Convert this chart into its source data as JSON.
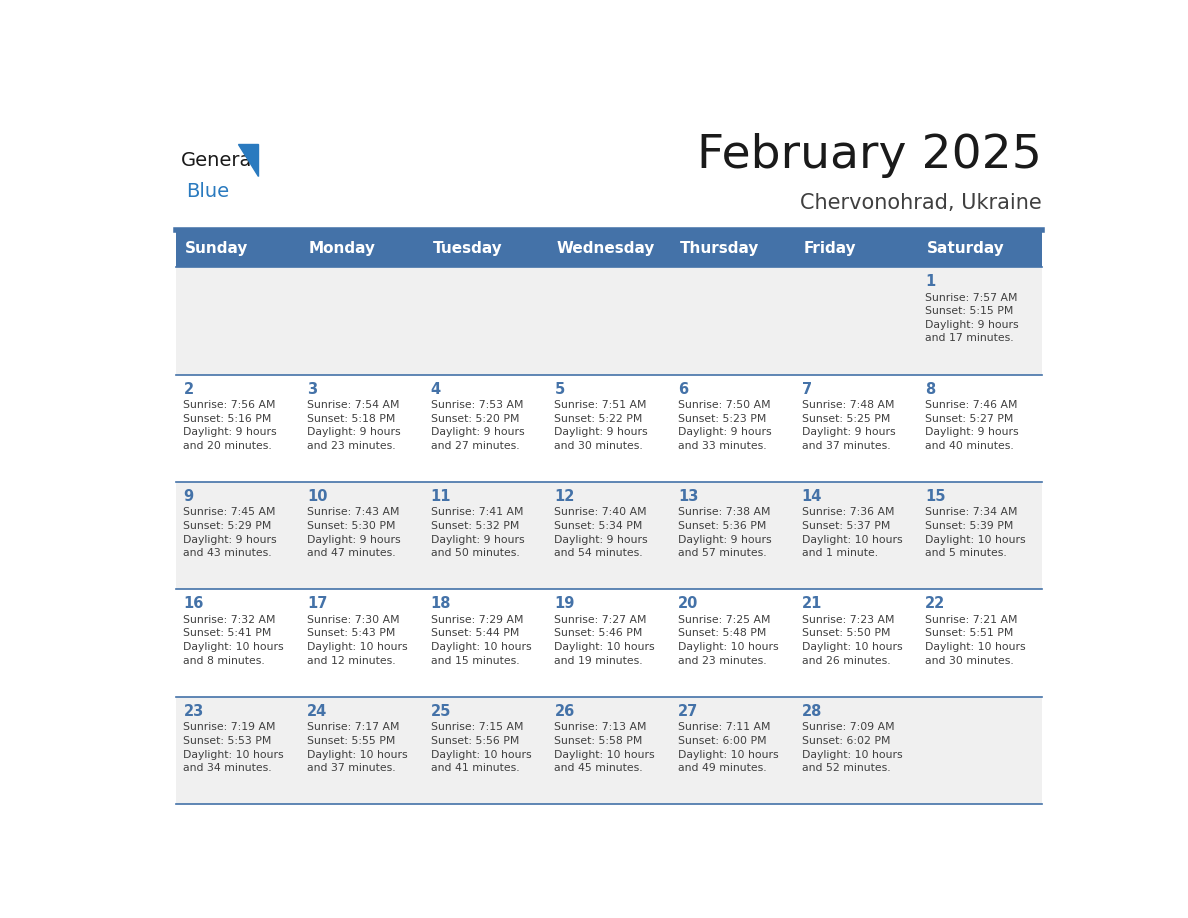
{
  "title": "February 2025",
  "subtitle": "Chervonohrad, Ukraine",
  "header_color": "#4472a8",
  "header_text_color": "#ffffff",
  "bg_color": "#ffffff",
  "cell_bg_even": "#f0f0f0",
  "cell_bg_odd": "#ffffff",
  "day_names": [
    "Sunday",
    "Monday",
    "Tuesday",
    "Wednesday",
    "Thursday",
    "Friday",
    "Saturday"
  ],
  "line_color": "#4472a8",
  "date_color": "#4472a8",
  "text_color": "#404040",
  "logo_general_color": "#1a1a1a",
  "logo_blue_color": "#2a7abf",
  "title_color": "#1a1a1a",
  "weeks": [
    [
      {
        "date": "",
        "info": ""
      },
      {
        "date": "",
        "info": ""
      },
      {
        "date": "",
        "info": ""
      },
      {
        "date": "",
        "info": ""
      },
      {
        "date": "",
        "info": ""
      },
      {
        "date": "",
        "info": ""
      },
      {
        "date": "1",
        "info": "Sunrise: 7:57 AM\nSunset: 5:15 PM\nDaylight: 9 hours\nand 17 minutes."
      }
    ],
    [
      {
        "date": "2",
        "info": "Sunrise: 7:56 AM\nSunset: 5:16 PM\nDaylight: 9 hours\nand 20 minutes."
      },
      {
        "date": "3",
        "info": "Sunrise: 7:54 AM\nSunset: 5:18 PM\nDaylight: 9 hours\nand 23 minutes."
      },
      {
        "date": "4",
        "info": "Sunrise: 7:53 AM\nSunset: 5:20 PM\nDaylight: 9 hours\nand 27 minutes."
      },
      {
        "date": "5",
        "info": "Sunrise: 7:51 AM\nSunset: 5:22 PM\nDaylight: 9 hours\nand 30 minutes."
      },
      {
        "date": "6",
        "info": "Sunrise: 7:50 AM\nSunset: 5:23 PM\nDaylight: 9 hours\nand 33 minutes."
      },
      {
        "date": "7",
        "info": "Sunrise: 7:48 AM\nSunset: 5:25 PM\nDaylight: 9 hours\nand 37 minutes."
      },
      {
        "date": "8",
        "info": "Sunrise: 7:46 AM\nSunset: 5:27 PM\nDaylight: 9 hours\nand 40 minutes."
      }
    ],
    [
      {
        "date": "9",
        "info": "Sunrise: 7:45 AM\nSunset: 5:29 PM\nDaylight: 9 hours\nand 43 minutes."
      },
      {
        "date": "10",
        "info": "Sunrise: 7:43 AM\nSunset: 5:30 PM\nDaylight: 9 hours\nand 47 minutes."
      },
      {
        "date": "11",
        "info": "Sunrise: 7:41 AM\nSunset: 5:32 PM\nDaylight: 9 hours\nand 50 minutes."
      },
      {
        "date": "12",
        "info": "Sunrise: 7:40 AM\nSunset: 5:34 PM\nDaylight: 9 hours\nand 54 minutes."
      },
      {
        "date": "13",
        "info": "Sunrise: 7:38 AM\nSunset: 5:36 PM\nDaylight: 9 hours\nand 57 minutes."
      },
      {
        "date": "14",
        "info": "Sunrise: 7:36 AM\nSunset: 5:37 PM\nDaylight: 10 hours\nand 1 minute."
      },
      {
        "date": "15",
        "info": "Sunrise: 7:34 AM\nSunset: 5:39 PM\nDaylight: 10 hours\nand 5 minutes."
      }
    ],
    [
      {
        "date": "16",
        "info": "Sunrise: 7:32 AM\nSunset: 5:41 PM\nDaylight: 10 hours\nand 8 minutes."
      },
      {
        "date": "17",
        "info": "Sunrise: 7:30 AM\nSunset: 5:43 PM\nDaylight: 10 hours\nand 12 minutes."
      },
      {
        "date": "18",
        "info": "Sunrise: 7:29 AM\nSunset: 5:44 PM\nDaylight: 10 hours\nand 15 minutes."
      },
      {
        "date": "19",
        "info": "Sunrise: 7:27 AM\nSunset: 5:46 PM\nDaylight: 10 hours\nand 19 minutes."
      },
      {
        "date": "20",
        "info": "Sunrise: 7:25 AM\nSunset: 5:48 PM\nDaylight: 10 hours\nand 23 minutes."
      },
      {
        "date": "21",
        "info": "Sunrise: 7:23 AM\nSunset: 5:50 PM\nDaylight: 10 hours\nand 26 minutes."
      },
      {
        "date": "22",
        "info": "Sunrise: 7:21 AM\nSunset: 5:51 PM\nDaylight: 10 hours\nand 30 minutes."
      }
    ],
    [
      {
        "date": "23",
        "info": "Sunrise: 7:19 AM\nSunset: 5:53 PM\nDaylight: 10 hours\nand 34 minutes."
      },
      {
        "date": "24",
        "info": "Sunrise: 7:17 AM\nSunset: 5:55 PM\nDaylight: 10 hours\nand 37 minutes."
      },
      {
        "date": "25",
        "info": "Sunrise: 7:15 AM\nSunset: 5:56 PM\nDaylight: 10 hours\nand 41 minutes."
      },
      {
        "date": "26",
        "info": "Sunrise: 7:13 AM\nSunset: 5:58 PM\nDaylight: 10 hours\nand 45 minutes."
      },
      {
        "date": "27",
        "info": "Sunrise: 7:11 AM\nSunset: 6:00 PM\nDaylight: 10 hours\nand 49 minutes."
      },
      {
        "date": "28",
        "info": "Sunrise: 7:09 AM\nSunset: 6:02 PM\nDaylight: 10 hours\nand 52 minutes."
      },
      {
        "date": "",
        "info": ""
      }
    ]
  ]
}
